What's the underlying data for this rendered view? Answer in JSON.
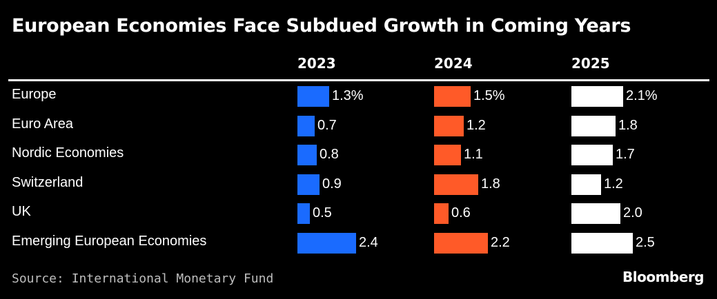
{
  "chart_data": {
    "type": "bar",
    "title": "European Economies Face Subdued Growth in Coming Years",
    "categories": [
      "Europe",
      "Euro Area",
      "Nordic Economies",
      "Switzerland",
      "UK",
      "Emerging European Economies"
    ],
    "series": [
      {
        "name": "2023",
        "color": "#1a6bff",
        "values": [
          1.3,
          0.7,
          0.8,
          0.9,
          0.5,
          2.4
        ],
        "labels": [
          "1.3%",
          "0.7",
          "0.8",
          "0.9",
          "0.5",
          "2.4"
        ]
      },
      {
        "name": "2024",
        "color": "#ff5a28",
        "values": [
          1.5,
          1.2,
          1.1,
          1.8,
          0.6,
          2.2
        ],
        "labels": [
          "1.5%",
          "1.2",
          "1.1",
          "1.8",
          "0.6",
          "2.2"
        ]
      },
      {
        "name": "2025",
        "color": "#ffffff",
        "values": [
          2.1,
          1.8,
          1.7,
          1.2,
          2.0,
          2.5
        ],
        "labels": [
          "2.1%",
          "1.8",
          "1.7",
          "1.2",
          "2.0",
          "2.5"
        ]
      }
    ],
    "source": "Source: International Monetary Fund",
    "brand": "Bloomberg"
  }
}
